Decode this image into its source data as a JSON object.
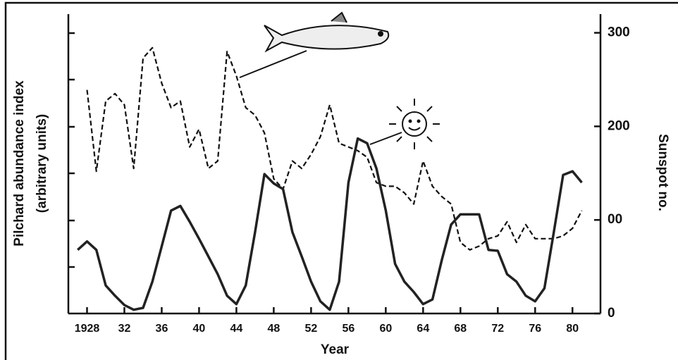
{
  "chart_data": {
    "type": "line",
    "x_label": "Year",
    "y_label": [
      "Pilchard abundance index",
      "(arbitrary units)"
    ],
    "y2_label": "Sunspot no.",
    "x": [
      1927,
      1928,
      1929,
      1930,
      1931,
      1932,
      1933,
      1934,
      1935,
      1936,
      1937,
      1938,
      1939,
      1940,
      1941,
      1942,
      1943,
      1944,
      1945,
      1946,
      1947,
      1948,
      1949,
      1950,
      1951,
      1952,
      1953,
      1954,
      1955,
      1956,
      1957,
      1958,
      1959,
      1960,
      1961,
      1962,
      1963,
      1964,
      1965,
      1966,
      1967,
      1968,
      1969,
      1970,
      1971,
      1972,
      1973,
      1974,
      1975,
      1976,
      1977,
      1978,
      1979,
      1980,
      1981
    ],
    "xlim": [
      1926,
      1983
    ],
    "xticks": [
      1928,
      {
        "value": 1932,
        "label": "32"
      },
      {
        "value": 1936,
        "label": "36"
      },
      {
        "value": 1940,
        "label": "40"
      },
      {
        "value": 1944,
        "label": "44"
      },
      {
        "value": 1948,
        "label": "48"
      },
      {
        "value": 1952,
        "label": "52"
      },
      {
        "value": 1956,
        "label": "56"
      },
      {
        "value": 1960,
        "label": "60"
      },
      {
        "value": 1964,
        "label": "64"
      },
      {
        "value": 1968,
        "label": "68"
      },
      {
        "value": 1972,
        "label": "72"
      },
      {
        "value": 1976,
        "label": "76"
      },
      {
        "value": 1980,
        "label": "80"
      }
    ],
    "ylim": [
      0,
      320
    ],
    "y2lim": [
      0,
      320
    ],
    "y2ticks": [
      0,
      {
        "value": 100,
        "label": "00"
      },
      200,
      300
    ],
    "series": [
      {
        "color": "#111111",
        "dashed": true,
        "values": [
          null,
          239,
          152,
          227,
          235,
          223,
          155,
          273,
          284,
          246,
          220,
          227,
          178,
          197,
          155,
          163,
          280,
          254,
          220,
          212,
          193,
          144,
          133,
          163,
          155,
          170,
          189,
          223,
          182,
          178,
          174,
          167,
          140,
          136,
          136,
          129,
          117,
          163,
          136,
          125,
          117,
          76,
          68,
          72,
          80,
          83,
          98,
          76,
          95,
          80,
          80,
          80,
          83,
          91,
          110
        ]
      },
      {
        "color": "#222222",
        "dashed": false,
        "axis": "y2",
        "values": [
          68,
          77,
          68,
          30,
          19,
          9,
          4,
          6,
          34,
          72,
          110,
          115,
          98,
          80,
          61,
          42,
          19,
          10,
          30,
          87,
          149,
          139,
          133,
          87,
          61,
          34,
          13,
          4,
          34,
          140,
          187,
          182,
          155,
          110,
          53,
          34,
          23,
          10,
          15,
          57,
          95,
          106,
          106,
          106,
          68,
          67,
          42,
          34,
          19,
          13,
          27,
          87,
          148,
          152,
          140
        ]
      }
    ]
  }
}
